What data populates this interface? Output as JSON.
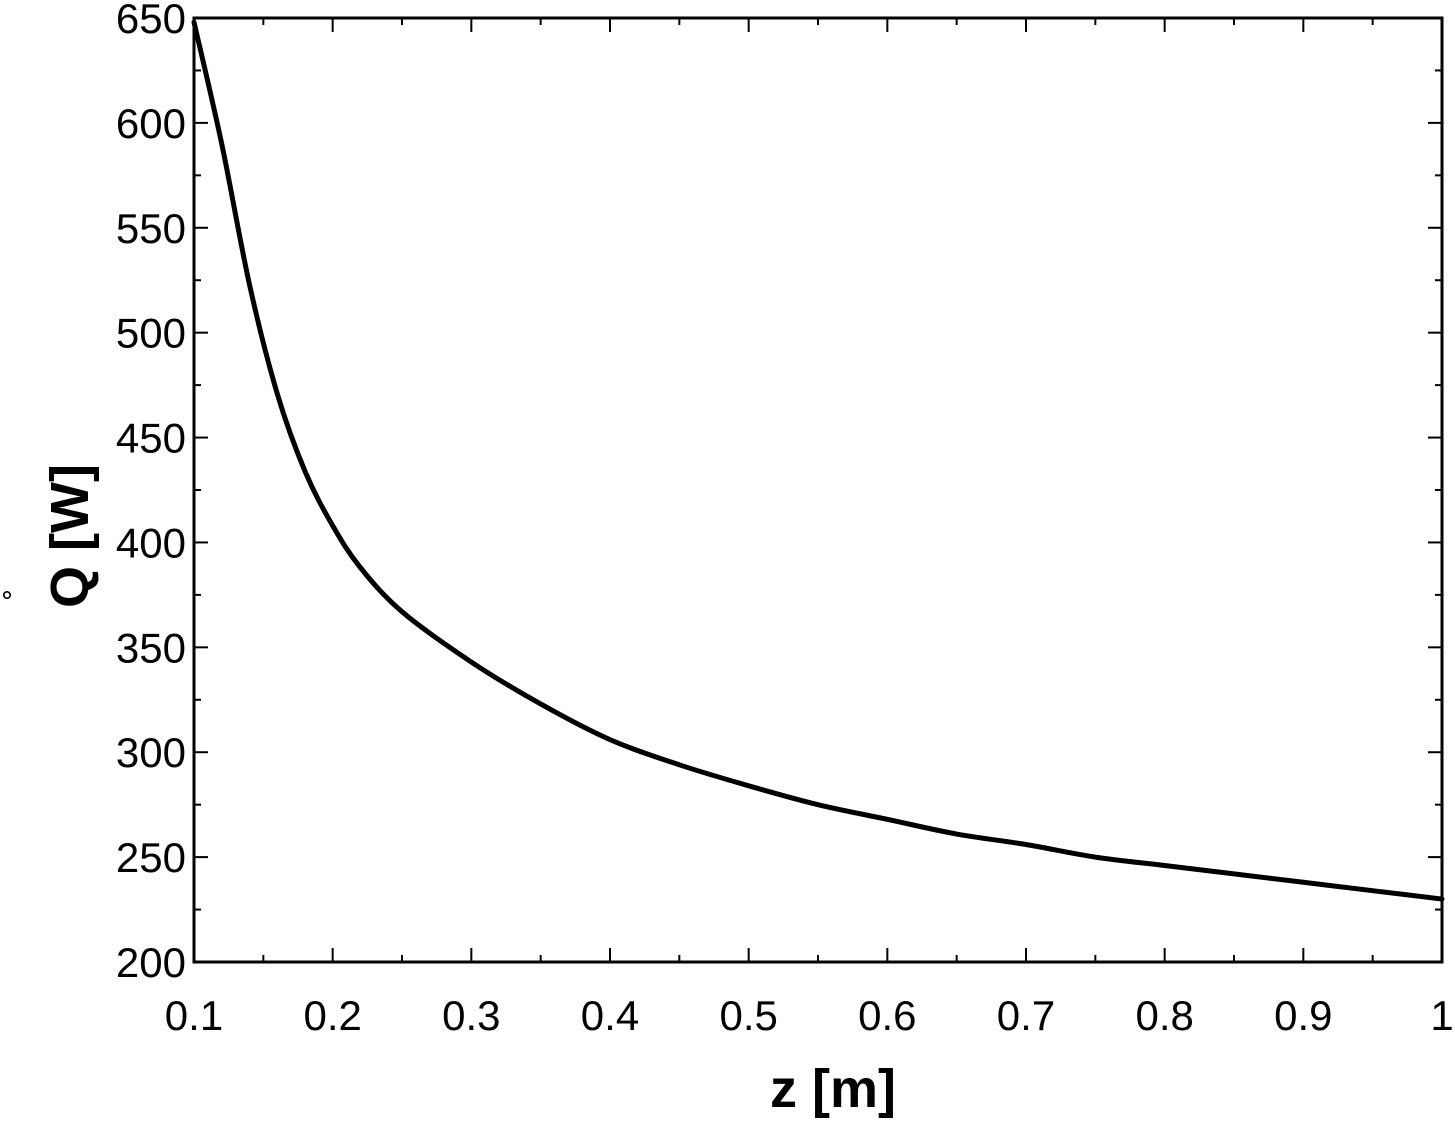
{
  "chart_data": {
    "type": "line",
    "title": "",
    "xlabel": "z  [m]",
    "ylabel": "Q  [W]",
    "ylabel_accent": "°",
    "xlim": [
      0.1,
      1.0
    ],
    "ylim": [
      200,
      650
    ],
    "x_ticks": [
      0.1,
      0.2,
      0.3,
      0.4,
      0.5,
      0.6,
      0.7,
      0.8,
      0.9,
      1.0
    ],
    "x_tick_labels": [
      "0.1",
      "0.2",
      "0.3",
      "0.4",
      "0.5",
      "0.6",
      "0.7",
      "0.8",
      "0.9",
      "1"
    ],
    "x_minor_step": 0.05,
    "y_ticks": [
      200,
      250,
      300,
      350,
      400,
      450,
      500,
      550,
      600,
      650
    ],
    "y_tick_labels": [
      "200",
      "250",
      "300",
      "350",
      "400",
      "450",
      "500",
      "550",
      "600",
      "650"
    ],
    "y_minor_step": 25,
    "grid": false,
    "legend": "none",
    "line_color": "#000000",
    "series": [
      {
        "x": [
          0.1,
          0.12,
          0.14,
          0.16,
          0.18,
          0.2,
          0.22,
          0.25,
          0.3,
          0.35,
          0.4,
          0.45,
          0.5,
          0.55,
          0.6,
          0.65,
          0.7,
          0.75,
          0.8,
          0.85,
          0.9,
          0.95,
          1.0
        ],
        "y": [
          648,
          590,
          523,
          471,
          434,
          408,
          388,
          367,
          343,
          323,
          306,
          294,
          284,
          275,
          268,
          261,
          256,
          250,
          246,
          242,
          238,
          234,
          230
        ]
      }
    ]
  }
}
